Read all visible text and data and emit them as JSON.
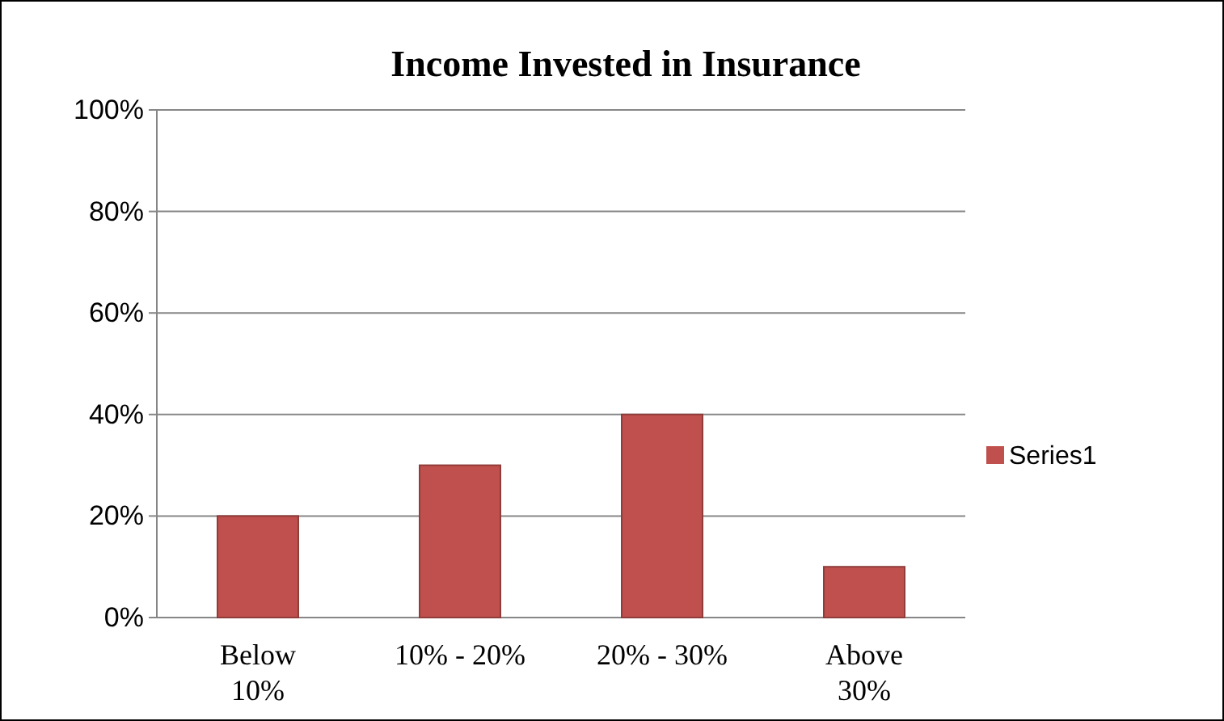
{
  "chart_data": {
    "type": "bar",
    "title": "Income Invested in Insurance",
    "categories": [
      "Below 10%",
      "10% - 20%",
      "20% - 30%",
      "Above 30%"
    ],
    "series": [
      {
        "name": "Series1",
        "color": "#c0504d",
        "values": [
          20,
          30,
          40,
          10
        ]
      }
    ],
    "ylim": [
      0,
      100
    ],
    "yticks": [
      {
        "value": 0,
        "label": "0%"
      },
      {
        "value": 20,
        "label": "20%"
      },
      {
        "value": 40,
        "label": "40%"
      },
      {
        "value": 60,
        "label": "60%"
      },
      {
        "value": 80,
        "label": "80%"
      },
      {
        "value": 100,
        "label": "100%"
      }
    ],
    "grid": "y",
    "legend": "right"
  }
}
